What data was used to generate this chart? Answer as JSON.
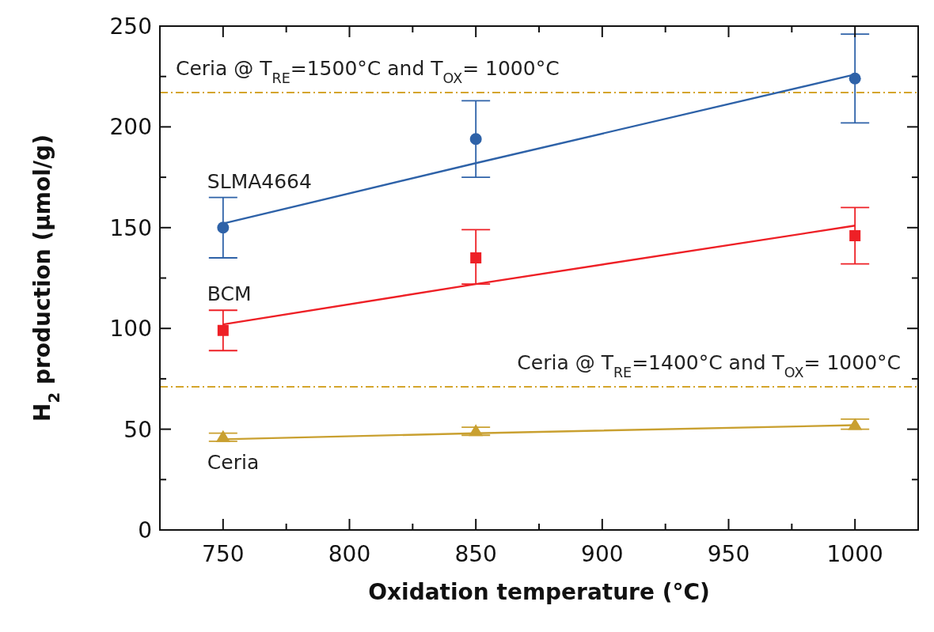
{
  "chart_data": {
    "type": "scatter",
    "xlabel": "Oxidation temperature (°C)",
    "ylabel": "H$_{2}$ production (μmol/g)",
    "x": [
      750,
      850,
      1000
    ],
    "xlim": [
      725,
      1025
    ],
    "xticks": [
      750,
      {
        "value": 775,
        "label": null
      },
      800,
      {
        "value": 825,
        "label": null
      },
      850,
      {
        "value": 875,
        "label": null
      },
      900,
      {
        "value": 925,
        "label": null
      },
      950,
      {
        "value": 975,
        "label": null
      },
      1000
    ],
    "ylim": [
      0,
      250
    ],
    "yticks": [
      0,
      {
        "value": 25,
        "label": null
      },
      50,
      {
        "value": 75,
        "label": null
      },
      100,
      {
        "value": 125,
        "label": null
      },
      150,
      {
        "value": 175,
        "label": null
      },
      200,
      {
        "value": 225,
        "label": null
      },
      250
    ],
    "grid": false,
    "annotations": [
      "Ceria @ T$_{RE}$=1500°C and T$_{OX}$= 1000°C",
      "Ceria @ T$_{RE}$=1400°C and T$_{OX}$= 1000°C"
    ],
    "series": [
      {
        "name": "SLMA4664",
        "marker": "circle",
        "color": "#2e62a8",
        "values": [
          150,
          194,
          224
        ],
        "errors": [
          [
            135,
            165
          ],
          [
            175,
            213
          ],
          [
            202,
            246
          ]
        ]
      },
      {
        "name": "BCM",
        "marker": "square",
        "color": "#ee2026",
        "values": [
          99,
          135,
          146
        ],
        "errors": [
          [
            89,
            109
          ],
          [
            122,
            149
          ],
          [
            132,
            160
          ]
        ]
      },
      {
        "name": "Ceria",
        "marker": "triangle",
        "color": "#c9a030",
        "values": [
          46,
          49,
          52
        ],
        "errors": [
          [
            44,
            48
          ],
          [
            47,
            51
          ],
          [
            50,
            55
          ]
        ]
      },
      {
        "type": "line",
        "marker": "none",
        "color": "#2e62a8",
        "values": [
          152,
          182,
          226
        ]
      },
      {
        "type": "line",
        "marker": "none",
        "color": "#ee2026",
        "values": [
          102,
          122,
          151
        ]
      },
      {
        "type": "line",
        "marker": "none",
        "color": "#c9a030",
        "values": [
          45,
          48,
          52
        ]
      }
    ],
    "ref_lines": [
      {
        "axis": "y",
        "value": 217,
        "color": "#d4a52c",
        "line_style": "dashdot"
      },
      {
        "axis": "y",
        "value": 71,
        "color": "#d4a52c",
        "line_style": "dashdot"
      }
    ]
  }
}
